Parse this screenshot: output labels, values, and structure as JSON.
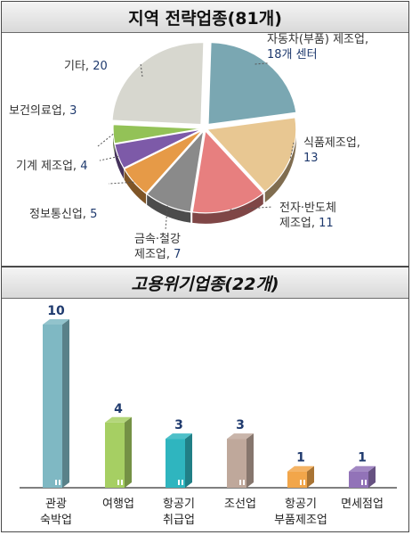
{
  "chart_data": [
    {
      "type": "pie",
      "title": "지역  전략업종(81개)",
      "slices": [
        {
          "name_lines": [
            "자동차(부품) 제조업,",
            "18개 센터"
          ],
          "value": 18,
          "color": "#7aa7b2"
        },
        {
          "name_lines": [
            "식품제조업,",
            "13"
          ],
          "value": 13,
          "color": "#e8c792"
        },
        {
          "name_lines": [
            "전자·반도체",
            "제조업, 11"
          ],
          "value": 11,
          "color": "#e77f7f"
        },
        {
          "name_lines": [
            "금속·철강",
            "제조업, 7"
          ],
          "value": 7,
          "color": "#8a8a8a"
        },
        {
          "name_lines": [
            "정보통신업, 5"
          ],
          "value": 5,
          "color": "#e69a47"
        },
        {
          "name_lines": [
            "기계 제조업, 4"
          ],
          "value": 4,
          "color": "#7d5aa8"
        },
        {
          "name_lines": [
            "보건의료업, 3"
          ],
          "value": 3,
          "color": "#93c257"
        },
        {
          "name_lines": [
            "기타, 20"
          ],
          "value": 20,
          "color": "#d7d7cf"
        }
      ]
    },
    {
      "type": "bar",
      "title": "고용위기업종(22개)",
      "categories": [
        {
          "label_lines": [
            "관광",
            "숙박업"
          ],
          "value": 10,
          "color": "#7fb8c3"
        },
        {
          "label_lines": [
            "여행업"
          ],
          "value": 4,
          "color": "#a6cf63"
        },
        {
          "label_lines": [
            "항공기",
            "취급업"
          ],
          "value": 3,
          "color": "#2fb5bf"
        },
        {
          "label_lines": [
            "조선업"
          ],
          "value": 3,
          "color": "#bfa89b"
        },
        {
          "label_lines": [
            "항공기",
            "부품제조업"
          ],
          "value": 1,
          "color": "#f2a64a"
        },
        {
          "label_lines": [
            "면세점업"
          ],
          "value": 1,
          "color": "#9273b8"
        }
      ],
      "value_labels": [
        "10",
        "4",
        "3",
        "3",
        "1",
        "1"
      ]
    }
  ]
}
